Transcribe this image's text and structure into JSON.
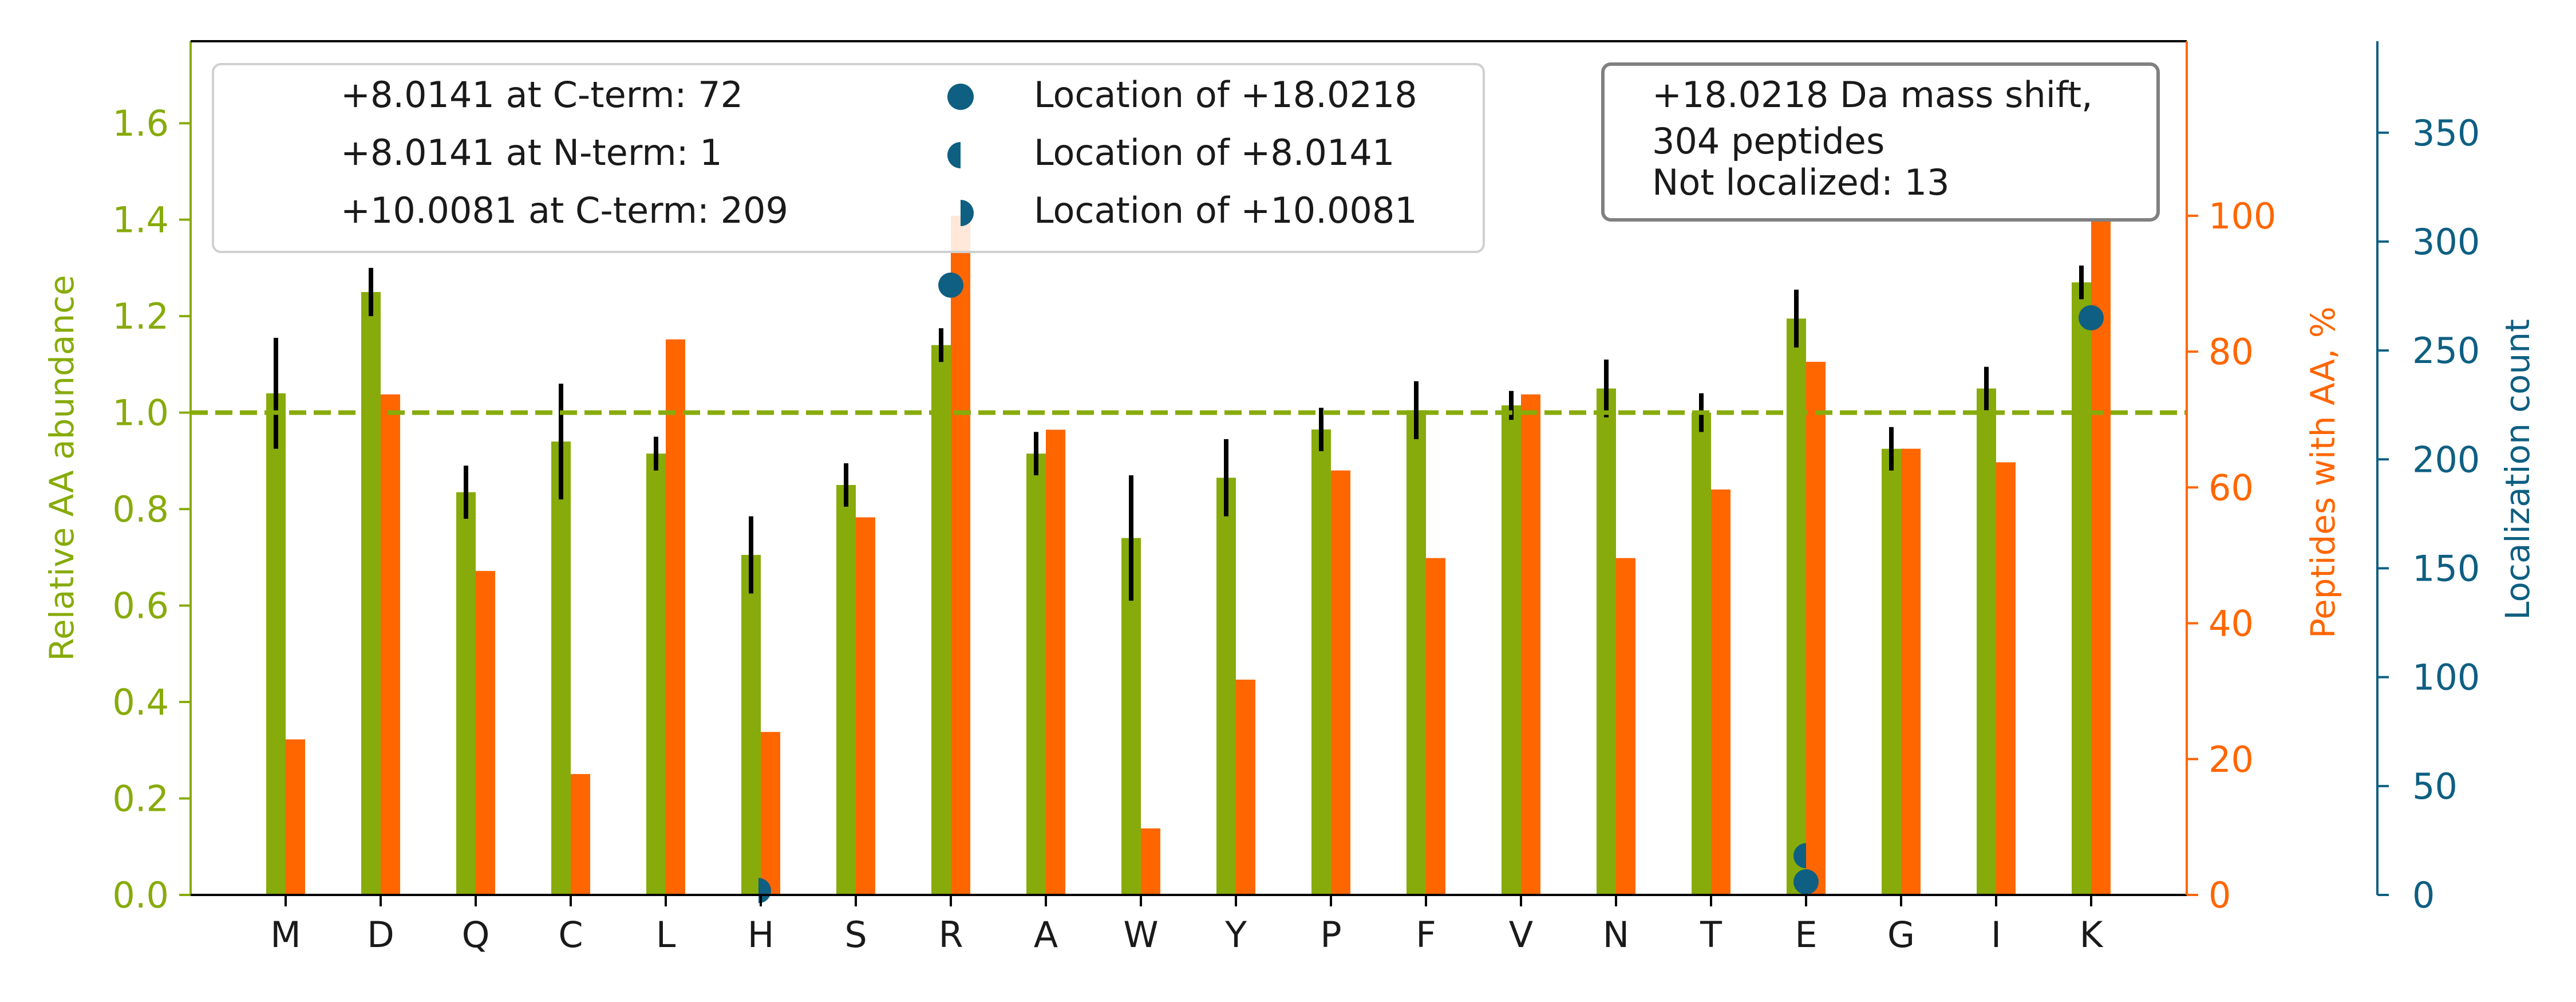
{
  "chart_data": {
    "type": "bar",
    "categories": [
      "M",
      "D",
      "Q",
      "C",
      "L",
      "H",
      "S",
      "R",
      "A",
      "W",
      "Y",
      "P",
      "F",
      "V",
      "N",
      "T",
      "E",
      "G",
      "I",
      "K"
    ],
    "series": [
      {
        "axis": "left",
        "color": "#87ab0a",
        "values": [
          1.04,
          1.25,
          0.835,
          0.94,
          0.915,
          0.705,
          0.85,
          1.14,
          0.915,
          0.74,
          0.865,
          0.965,
          1.005,
          1.015,
          1.05,
          1.0,
          1.195,
          0.925,
          1.05,
          1.27
        ],
        "error": [
          0.115,
          0.05,
          0.055,
          0.12,
          0.035,
          0.08,
          0.045,
          0.035,
          0.045,
          0.13,
          0.08,
          0.045,
          0.06,
          0.03,
          0.06,
          0.04,
          0.06,
          0.045,
          0.045,
          0.035
        ]
      },
      {
        "axis": "right",
        "color": "#ff6600",
        "values": [
          22.9,
          73.7,
          47.7,
          17.8,
          81.8,
          24.0,
          55.6,
          100,
          68.5,
          9.8,
          31.7,
          62.5,
          49.6,
          73.7,
          49.6,
          59.7,
          78.5,
          65.7,
          63.7,
          99.7
        ]
      }
    ],
    "localization": {
      "color": "#0e5f82",
      "points": [
        {
          "category": "R",
          "count": 280,
          "marker": "full"
        },
        {
          "category": "K",
          "count": 265,
          "marker": "full"
        },
        {
          "category": "E",
          "count": 18,
          "marker": "left-half"
        },
        {
          "category": "E",
          "count": 6,
          "marker": "full"
        },
        {
          "category": "H",
          "count": 2,
          "marker": "right-half"
        }
      ]
    },
    "reference_line": {
      "y": 1.0,
      "color": "#87ab0a",
      "style": "dashed"
    },
    "y_left": {
      "label": "Relative AA abundance",
      "lim": [
        0,
        1.77
      ],
      "ticks": [
        "0.0",
        "0.2",
        "0.4",
        "0.6",
        "0.8",
        "1.0",
        "1.2",
        "1.4",
        "1.6"
      ],
      "color": "#87ab0a"
    },
    "y_right": {
      "label": "Peptides with AA, %",
      "lim": [
        0,
        125.7
      ],
      "ticks": [
        "0",
        "20",
        "40",
        "60",
        "80",
        "100"
      ],
      "color": "#ff6600"
    },
    "y_right2": {
      "label": "Localization count",
      "lim": [
        0,
        392
      ],
      "ticks": [
        "0",
        "50",
        "100",
        "150",
        "200",
        "250",
        "300",
        "350"
      ],
      "color": "#0e5f82"
    },
    "legend": {
      "placement": "top-left",
      "counts": [
        "+8.0141 at C-term: 72",
        "+8.0141 at N-term: 1",
        "+10.0081 at C-term: 209"
      ],
      "markers": [
        {
          "label": "Location of +18.0218",
          "marker": "full"
        },
        {
          "label": "Location of +8.0141",
          "marker": "left-half"
        },
        {
          "label": "Location of +10.0081",
          "marker": "right-half"
        }
      ]
    },
    "info_box": {
      "placement": "top-right",
      "lines": [
        "+18.0218 Da mass shift,",
        "304 peptides",
        "Not localized: 13"
      ]
    }
  }
}
